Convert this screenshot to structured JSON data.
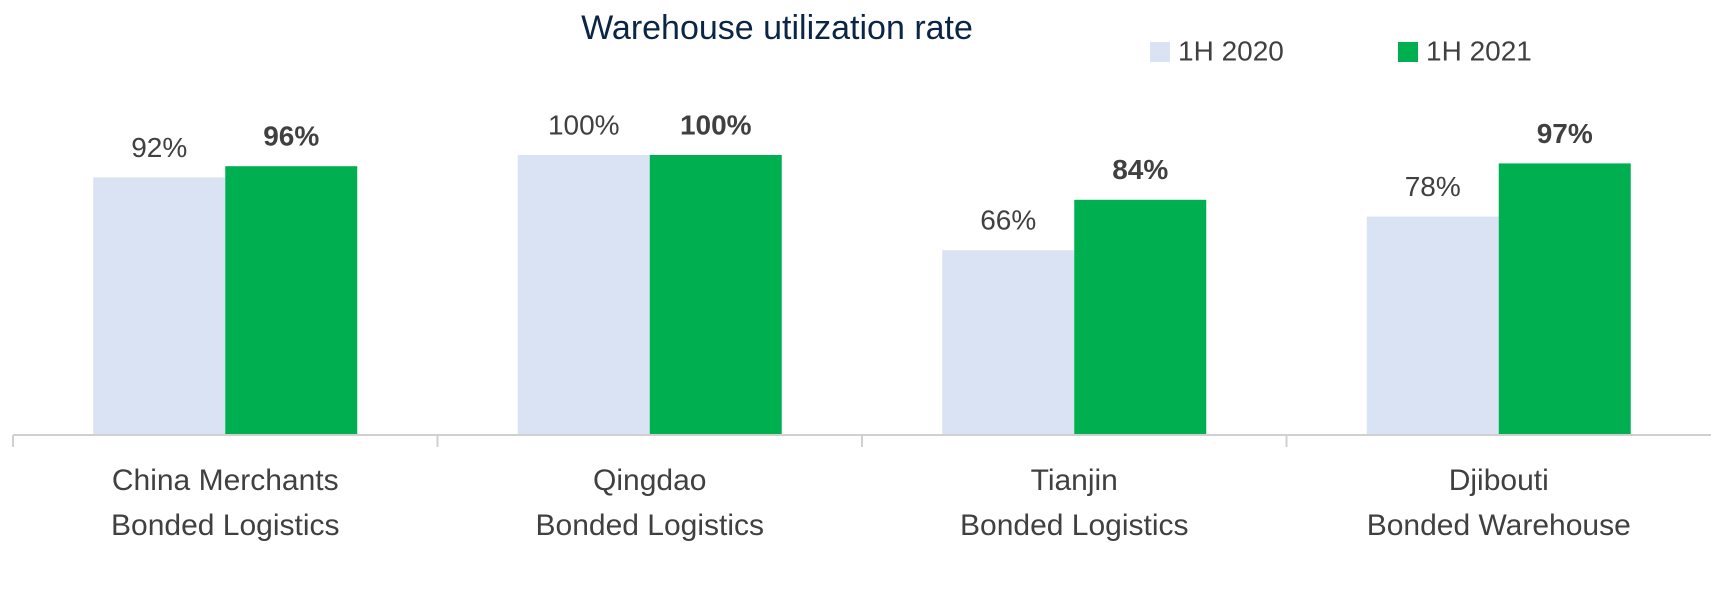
{
  "chart_data": {
    "type": "bar",
    "title": "Warehouse utilization rate",
    "categories": [
      [
        "China Merchants",
        "Bonded Logistics"
      ],
      [
        "Qingdao",
        "Bonded Logistics"
      ],
      [
        "Tianjin",
        "Bonded Logistics"
      ],
      [
        "Djibouti",
        "Bonded Warehouse"
      ]
    ],
    "series": [
      {
        "name": "1H 2020",
        "color": "#dae3f3",
        "values": [
          92,
          100,
          66,
          78
        ],
        "value_labels": [
          "92%",
          "100%",
          "66%",
          "78%"
        ]
      },
      {
        "name": "1H 2021",
        "color": "#00b050",
        "values": [
          96,
          100,
          84,
          97
        ],
        "value_labels": [
          "96%",
          "100%",
          "84%",
          "97%"
        ]
      }
    ],
    "legend": "top-right"
  }
}
